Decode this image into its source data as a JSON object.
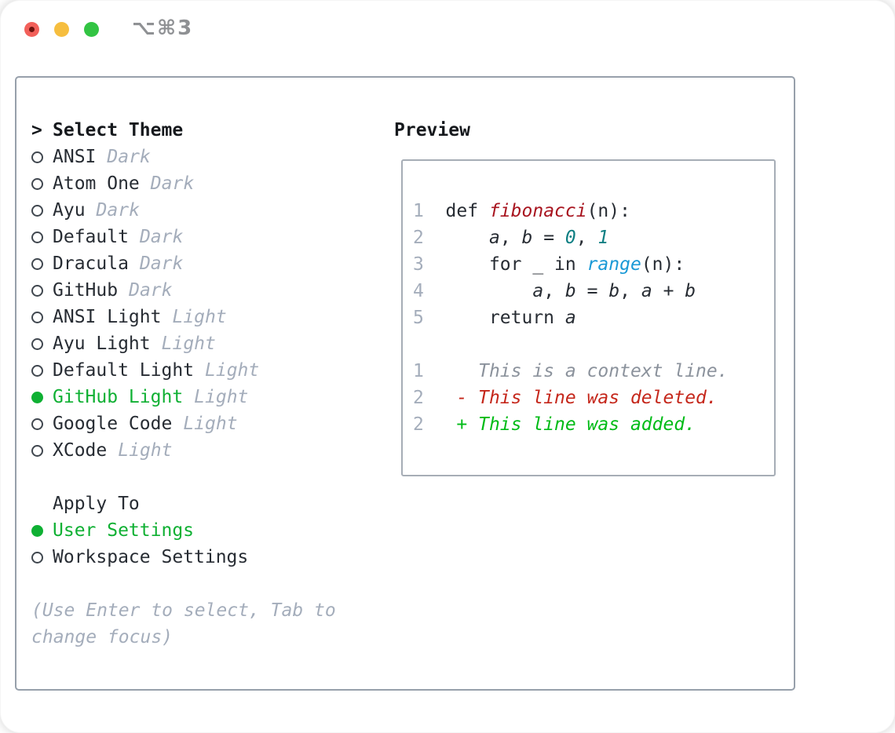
{
  "window": {
    "title": "⌥⌘3",
    "traffic_lights": [
      "close",
      "minimize",
      "zoom"
    ]
  },
  "theme_list": {
    "arrow": ">",
    "header": "Select Theme",
    "items": [
      {
        "name": "ANSI",
        "variant": "Dark",
        "selected": false
      },
      {
        "name": "Atom One",
        "variant": "Dark",
        "selected": false
      },
      {
        "name": "Ayu",
        "variant": "Dark",
        "selected": false
      },
      {
        "name": "Default",
        "variant": "Dark",
        "selected": false
      },
      {
        "name": "Dracula",
        "variant": "Dark",
        "selected": false
      },
      {
        "name": "GitHub",
        "variant": "Dark",
        "selected": false
      },
      {
        "name": "ANSI Light",
        "variant": "Light",
        "selected": false
      },
      {
        "name": "Ayu Light",
        "variant": "Light",
        "selected": false
      },
      {
        "name": "Default Light",
        "variant": "Light",
        "selected": false
      },
      {
        "name": "GitHub Light",
        "variant": "Light",
        "selected": true
      },
      {
        "name": "Google Code",
        "variant": "Light",
        "selected": false
      },
      {
        "name": "XCode",
        "variant": "Light",
        "selected": false
      }
    ]
  },
  "apply_to": {
    "header": "Apply To",
    "options": [
      {
        "label": "User Settings",
        "selected": true
      },
      {
        "label": "Workspace Settings",
        "selected": false
      }
    ]
  },
  "hint": "(Use Enter to select, Tab to change focus)",
  "preview": {
    "header": "Preview",
    "lines": [
      {
        "num": "1",
        "segs": [
          [
            "plain",
            "  def "
          ],
          [
            "func",
            "fibonacci"
          ],
          [
            "plain",
            "(n):"
          ]
        ]
      },
      {
        "num": "2",
        "segs": [
          [
            "plain",
            "      "
          ],
          [
            "var",
            "a"
          ],
          [
            "plain",
            ", "
          ],
          [
            "var",
            "b"
          ],
          [
            "plain",
            " = "
          ],
          [
            "numlit",
            "0"
          ],
          [
            "plain",
            ", "
          ],
          [
            "numlit",
            "1"
          ]
        ]
      },
      {
        "num": "3",
        "segs": [
          [
            "plain",
            "      for _ in "
          ],
          [
            "builtin",
            "range"
          ],
          [
            "plain",
            "(n):"
          ]
        ]
      },
      {
        "num": "4",
        "segs": [
          [
            "plain",
            "          "
          ],
          [
            "var",
            "a"
          ],
          [
            "plain",
            ", "
          ],
          [
            "var",
            "b"
          ],
          [
            "plain",
            " = "
          ],
          [
            "var",
            "b"
          ],
          [
            "plain",
            ", "
          ],
          [
            "var",
            "a"
          ],
          [
            "plain",
            " + "
          ],
          [
            "var",
            "b"
          ]
        ]
      },
      {
        "num": "5",
        "segs": [
          [
            "plain",
            "      return "
          ],
          [
            "var",
            "a"
          ]
        ]
      },
      {
        "num": "",
        "segs": []
      },
      {
        "num": "1",
        "segs": [
          [
            "context",
            "     This is a context line."
          ]
        ]
      },
      {
        "num": "2",
        "segs": [
          [
            "deleted",
            "   - This line was deleted."
          ]
        ]
      },
      {
        "num": "2",
        "segs": [
          [
            "added",
            "   + This line was added."
          ]
        ]
      }
    ]
  },
  "colors": {
    "selection_green": "#0fb033",
    "added_green": "#00bb16",
    "deleted_red": "#c5271b",
    "function_red": "#a8141f",
    "builtin_blue": "#1a99d6",
    "number_teal": "#0e7f83",
    "muted_gray": "#a4adbb",
    "context_gray": "#8b929c",
    "text_dark": "#272c33",
    "panel_border": "#97a0ab",
    "preview_border": "#a6adb6",
    "traffic_red": "#f2605a",
    "traffic_yellow": "#f6be3f",
    "traffic_green": "#32c443"
  }
}
